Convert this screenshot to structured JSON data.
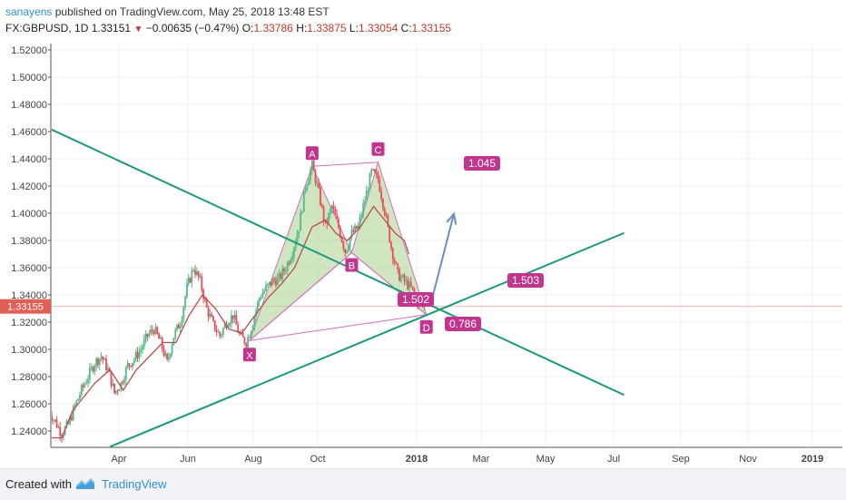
{
  "header": {
    "author": "sanayens",
    "published": "published on TradingView.com, May 25, 2018 13:48 EST",
    "symbol": "FX:GBPUSD, 1D",
    "last": "1.33151",
    "change": "−0.00635 (−0.47%)",
    "o_label": "O:",
    "o_val": "1.33786",
    "h_label": "H:",
    "h_val": "1.33875",
    "l_label": "L:",
    "l_val": "1.33054",
    "c_label": "C:",
    "c_val": "1.33155"
  },
  "footer": {
    "created": "Created with",
    "brand": "TradingView"
  },
  "colors": {
    "up": "#53b987",
    "down": "#eb4d5c",
    "ma": "#b5504f",
    "trend": "#1a9b76",
    "pattern": "#d06fb8",
    "label_bg": "#c2358f",
    "arrow": "#6a8fc7",
    "price_tag": "#e06055",
    "fill": "#a9d18e"
  },
  "chart_data": {
    "type": "candlestick",
    "symbol": "FX:GBPUSD",
    "interval": "1D",
    "ylim": [
      1.23,
      1.525
    ],
    "y_ticks": [
      "1.52000",
      "1.50000",
      "1.48000",
      "1.46000",
      "1.44000",
      "1.42000",
      "1.40000",
      "1.38000",
      "1.36000",
      "1.34000",
      "1.32000",
      "1.30000",
      "1.28000",
      "1.26000",
      "1.24000"
    ],
    "x_ticks": [
      "Apr",
      "Jun",
      "Aug",
      "Oct",
      "2018",
      "Mar",
      "May",
      "Jul",
      "Sep",
      "Nov",
      "2019"
    ],
    "current_price_label": "1.33155",
    "close_path": [
      [
        -12,
        1.255
      ],
      [
        -6,
        1.247
      ],
      [
        0,
        1.238
      ],
      [
        6,
        1.245
      ],
      [
        12,
        1.258
      ],
      [
        18,
        1.27
      ],
      [
        24,
        1.28
      ],
      [
        30,
        1.29
      ],
      [
        36,
        1.295
      ],
      [
        42,
        1.285
      ],
      [
        48,
        1.268
      ],
      [
        54,
        1.275
      ],
      [
        60,
        1.288
      ],
      [
        66,
        1.293
      ],
      [
        72,
        1.3
      ],
      [
        78,
        1.31
      ],
      [
        84,
        1.315
      ],
      [
        90,
        1.305
      ],
      [
        96,
        1.29
      ],
      [
        102,
        1.31
      ],
      [
        108,
        1.32
      ],
      [
        114,
        1.345
      ],
      [
        120,
        1.36
      ],
      [
        126,
        1.35
      ],
      [
        132,
        1.33
      ],
      [
        138,
        1.318
      ],
      [
        144,
        1.31
      ],
      [
        150,
        1.32
      ],
      [
        156,
        1.325
      ],
      [
        162,
        1.31
      ],
      [
        168,
        1.305
      ],
      [
        174,
        1.32
      ],
      [
        180,
        1.338
      ],
      [
        186,
        1.345
      ],
      [
        192,
        1.35
      ],
      [
        198,
        1.352
      ],
      [
        204,
        1.36
      ],
      [
        210,
        1.372
      ],
      [
        216,
        1.39
      ],
      [
        222,
        1.42
      ],
      [
        228,
        1.435
      ],
      [
        234,
        1.415
      ],
      [
        240,
        1.39
      ],
      [
        246,
        1.405
      ],
      [
        252,
        1.39
      ],
      [
        258,
        1.372
      ],
      [
        264,
        1.385
      ],
      [
        270,
        1.39
      ],
      [
        276,
        1.41
      ],
      [
        282,
        1.43
      ],
      [
        288,
        1.425
      ],
      [
        294,
        1.402
      ],
      [
        300,
        1.375
      ],
      [
        306,
        1.355
      ],
      [
        312,
        1.35
      ],
      [
        318,
        1.345
      ],
      [
        324,
        1.335
      ],
      [
        330,
        1.3315
      ]
    ],
    "ma_path": [
      [
        -12,
        1.235
      ],
      [
        0,
        1.235
      ],
      [
        10,
        1.255
      ],
      [
        20,
        1.265
      ],
      [
        30,
        1.275
      ],
      [
        44,
        1.285
      ],
      [
        56,
        1.27
      ],
      [
        68,
        1.285
      ],
      [
        80,
        1.295
      ],
      [
        92,
        1.305
      ],
      [
        104,
        1.305
      ],
      [
        116,
        1.325
      ],
      [
        128,
        1.34
      ],
      [
        140,
        1.33
      ],
      [
        152,
        1.315
      ],
      [
        164,
        1.312
      ],
      [
        176,
        1.325
      ],
      [
        188,
        1.338
      ],
      [
        200,
        1.348
      ],
      [
        212,
        1.36
      ],
      [
        220,
        1.375
      ],
      [
        228,
        1.39
      ],
      [
        240,
        1.395
      ],
      [
        250,
        1.385
      ],
      [
        260,
        1.38
      ],
      [
        272,
        1.39
      ],
      [
        284,
        1.405
      ],
      [
        294,
        1.395
      ],
      [
        304,
        1.385
      ],
      [
        312,
        1.38
      ],
      [
        316,
        1.37
      ]
    ],
    "harmonic_pattern": {
      "points": [
        {
          "label": "X",
          "day": 171,
          "price": 1.3065
        },
        {
          "label": "A",
          "day": 228,
          "price": 1.4345
        },
        {
          "label": "B",
          "day": 264,
          "price": 1.371
        },
        {
          "label": "C",
          "day": 288,
          "price": 1.4375
        },
        {
          "label": "D",
          "day": 332,
          "price": 1.3255
        }
      ],
      "ratios": [
        {
          "text": "1.045",
          "between": [
            "A",
            "C"
          ]
        },
        {
          "text": "1.502",
          "between": [
            "X",
            "B"
          ]
        },
        {
          "text": "1.503",
          "between": [
            "B",
            "D"
          ]
        },
        {
          "text": "0.786",
          "between": [
            "X",
            "D"
          ]
        }
      ]
    },
    "trend_lines": [
      {
        "from": [
          -12,
          1.4625
        ],
        "to": [
          512,
          1.2665
        ]
      },
      {
        "from": [
          44,
          1.2285
        ],
        "to": [
          512,
          1.3855
        ]
      }
    ],
    "projection_arrow": {
      "from": [
        336,
        1.3335
      ],
      "to": [
        357,
        1.3995
      ]
    }
  }
}
